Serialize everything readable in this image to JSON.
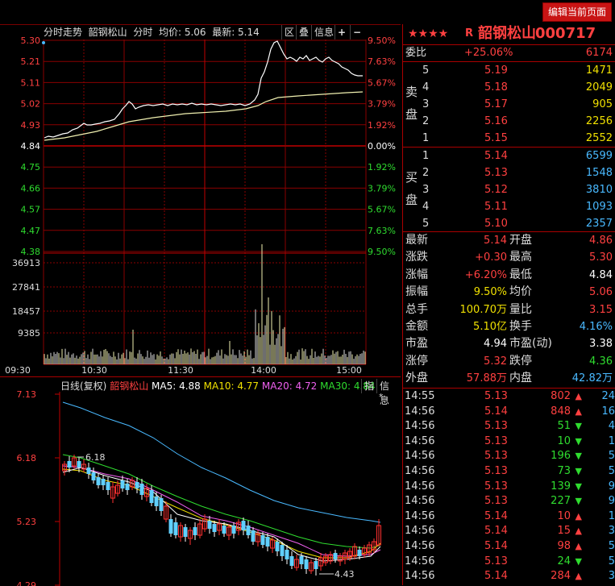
{
  "toolbar": {
    "edit_label": "编辑当前页面"
  },
  "intraday": {
    "tab_label": "分时走势",
    "stock_name": "韶钢松山",
    "mode_label": "分时",
    "avg_label": "均价: 5.06",
    "last_label": "最新: 5.14",
    "buttons": [
      "区",
      "叠",
      "信息",
      "+",
      "−"
    ],
    "price_ticks": [
      "5.30",
      "5.21",
      "5.11",
      "5.02",
      "4.93",
      "4.84",
      "4.75",
      "4.66",
      "4.57",
      "4.47",
      "4.38"
    ],
    "pct_ticks": [
      "9.50%",
      "7.63%",
      "5.67%",
      "3.79%",
      "1.92%",
      "0.00%",
      "1.92%",
      "3.79%",
      "5.67%",
      "7.63%",
      "9.50%"
    ],
    "vol_ticks": [
      "36913",
      "27841",
      "18457",
      "9385"
    ],
    "time_ticks": [
      "09:30",
      "10:30",
      "11:30",
      "14:00",
      "15:00"
    ]
  },
  "kline": {
    "label": "日线(复权)",
    "stock_name": "韶钢松山",
    "ma5": "MA5: 4.88",
    "ma10": "MA10: 4.77",
    "ma20": "MA20: 4.72",
    "ma30": "MA30: 4.84",
    "btn_zhi": "指",
    "btn_info": "信息",
    "price_ticks": [
      "7.13",
      "6.18",
      "5.23",
      "4.29"
    ],
    "high_label": "6.18",
    "low_label": "4.43",
    "star": "*"
  },
  "quote": {
    "header": {
      "stars": "★★★★",
      "r_label": "R",
      "name": "韶钢松山",
      "code": "000717"
    },
    "weibi": {
      "label": "委比",
      "pct": "+25.06%",
      "diff": "6174"
    },
    "sell_label": "卖盘",
    "buy_label": "买盘",
    "sell": [
      {
        "lvl": "5",
        "price": "5.19",
        "vol": "1471"
      },
      {
        "lvl": "4",
        "price": "5.18",
        "vol": "2049"
      },
      {
        "lvl": "3",
        "price": "5.17",
        "vol": "905"
      },
      {
        "lvl": "2",
        "price": "5.16",
        "vol": "2256"
      },
      {
        "lvl": "1",
        "price": "5.15",
        "vol": "2552"
      }
    ],
    "buy": [
      {
        "lvl": "1",
        "price": "5.14",
        "vol": "6599"
      },
      {
        "lvl": "2",
        "price": "5.13",
        "vol": "1548"
      },
      {
        "lvl": "3",
        "price": "5.12",
        "vol": "3810"
      },
      {
        "lvl": "4",
        "price": "5.11",
        "vol": "1093"
      },
      {
        "lvl": "5",
        "price": "5.10",
        "vol": "2357"
      }
    ],
    "stats": [
      {
        "l1": "最新",
        "v1": "5.14",
        "c1": "red",
        "l2": "开盘",
        "v2": "4.86",
        "c2": "red"
      },
      {
        "l1": "涨跌",
        "v1": "+0.30",
        "c1": "red",
        "l2": "最高",
        "v2": "5.30",
        "c2": "red"
      },
      {
        "l1": "涨幅",
        "v1": "+6.20%",
        "c1": "red",
        "l2": "最低",
        "v2": "4.84",
        "c2": "white"
      },
      {
        "l1": "振幅",
        "v1": "9.50%",
        "c1": "yellow",
        "l2": "均价",
        "v2": "5.06",
        "c2": "red"
      },
      {
        "l1": "总手",
        "v1": "100.70万",
        "c1": "yellow",
        "l2": "量比",
        "v2": "3.15",
        "c2": "red"
      },
      {
        "l1": "金额",
        "v1": "5.10亿",
        "c1": "yellow",
        "l2": "换手",
        "v2": "4.16%",
        "c2": "cyan"
      },
      {
        "l1": "市盈",
        "v1": "4.94",
        "c1": "white",
        "l2": "市盈(动)",
        "v2": "3.38",
        "c2": "white"
      },
      {
        "l1": "涨停",
        "v1": "5.32",
        "c1": "red",
        "l2": "跌停",
        "v2": "4.36",
        "c2": "green"
      },
      {
        "l1": "外盘",
        "v1": "57.88万",
        "c1": "red",
        "l2": "内盘",
        "v2": "42.82万",
        "c2": "cyan"
      }
    ],
    "ticks": [
      {
        "time": "14:55",
        "price": "5.13",
        "vol": "802",
        "dir": "up",
        "n": "24"
      },
      {
        "time": "14:56",
        "price": "5.14",
        "vol": "848",
        "dir": "up",
        "n": "16"
      },
      {
        "time": "14:56",
        "price": "5.13",
        "vol": "51",
        "dir": "down",
        "n": "4"
      },
      {
        "time": "14:56",
        "price": "5.13",
        "vol": "10",
        "dir": "down",
        "n": "1"
      },
      {
        "time": "14:56",
        "price": "5.13",
        "vol": "196",
        "dir": "down",
        "n": "5"
      },
      {
        "time": "14:56",
        "price": "5.13",
        "vol": "73",
        "dir": "down",
        "n": "5"
      },
      {
        "time": "14:56",
        "price": "5.13",
        "vol": "139",
        "dir": "down",
        "n": "9"
      },
      {
        "time": "14:56",
        "price": "5.13",
        "vol": "227",
        "dir": "down",
        "n": "9"
      },
      {
        "time": "14:56",
        "price": "5.14",
        "vol": "10",
        "dir": "up",
        "n": "1"
      },
      {
        "time": "14:56",
        "price": "5.14",
        "vol": "15",
        "dir": "up",
        "n": "3"
      },
      {
        "time": "14:56",
        "price": "5.14",
        "vol": "98",
        "dir": "up",
        "n": "5"
      },
      {
        "time": "14:56",
        "price": "5.13",
        "vol": "24",
        "dir": "down",
        "n": "5"
      },
      {
        "time": "14:56",
        "price": "5.14",
        "vol": "284",
        "dir": "up",
        "n": "3"
      }
    ]
  },
  "colors": {
    "up": "#ff3030",
    "down": "#20d020",
    "grid": "#8a0000",
    "price_line": "#ffffff",
    "avg_line": "#f0f0b0"
  }
}
